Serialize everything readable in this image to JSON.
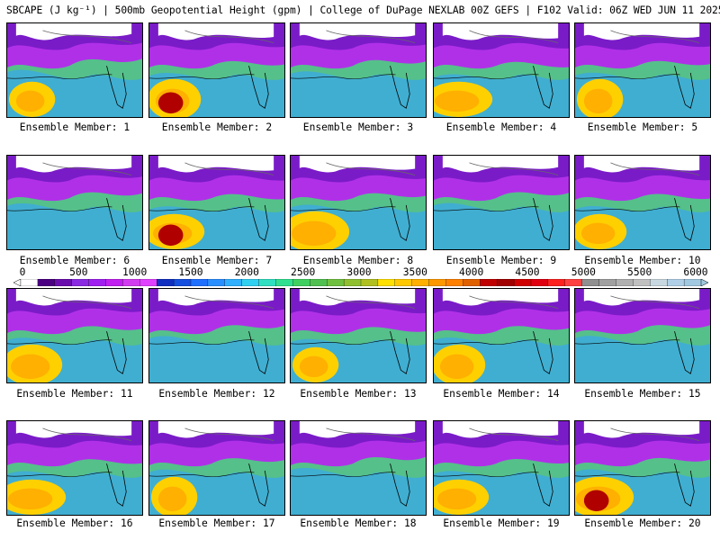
{
  "title": "SBCAPE (J kg⁻¹) | 500mb Geopotential Height (gpm) | College of DuPage NEXLAB 00Z GEFS | F102 Valid: 06Z WED JUN 11 2025",
  "panels": [
    {
      "label": "Ensemble Member: 1"
    },
    {
      "label": "Ensemble Member: 2"
    },
    {
      "label": "Ensemble Member: 3"
    },
    {
      "label": "Ensemble Member: 4"
    },
    {
      "label": "Ensemble Member: 5"
    },
    {
      "label": "Ensemble Member: 6"
    },
    {
      "label": "Ensemble Member: 7"
    },
    {
      "label": "Ensemble Member: 8"
    },
    {
      "label": "Ensemble Member: 9"
    },
    {
      "label": "Ensemble Member: 10"
    },
    {
      "label": "Ensemble Member: 11"
    },
    {
      "label": "Ensemble Member: 12"
    },
    {
      "label": "Ensemble Member: 13"
    },
    {
      "label": "Ensemble Member: 14"
    },
    {
      "label": "Ensemble Member: 15"
    },
    {
      "label": "Ensemble Member: 16"
    },
    {
      "label": "Ensemble Member: 17"
    },
    {
      "label": "Ensemble Member: 18"
    },
    {
      "label": "Ensemble Member: 19"
    },
    {
      "label": "Ensemble Member: 20"
    }
  ],
  "colorbar": {
    "ticks": [
      "0",
      "500",
      "1000",
      "1500",
      "2000",
      "2500",
      "3000",
      "3500",
      "4000",
      "4500",
      "5000",
      "5500",
      "6000"
    ],
    "colors": [
      "#ffffff",
      "#4b0082",
      "#6a0dad",
      "#8a2be2",
      "#a020f0",
      "#c020f0",
      "#d23cf0",
      "#e040ff",
      "#1030c0",
      "#1550e0",
      "#2070ff",
      "#2a90ff",
      "#30b0ff",
      "#30d0f0",
      "#30e0c0",
      "#30e090",
      "#40d060",
      "#50c050",
      "#70c040",
      "#90c030",
      "#b0c020",
      "#ffe000",
      "#ffc800",
      "#ffb000",
      "#ff9800",
      "#ff8000",
      "#e06000",
      "#c00000",
      "#a00000",
      "#d00000",
      "#e00010",
      "#ff2020",
      "#ff4040",
      "#909090",
      "#a0a0a0",
      "#b0b0b0",
      "#c0c0c0",
      "#c8d8e0",
      "#b0d0e8",
      "#a0c8e0"
    ]
  }
}
